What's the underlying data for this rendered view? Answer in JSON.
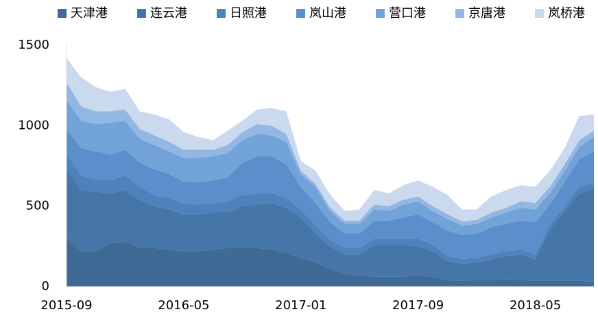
{
  "chart_data": {
    "type": "stacked_area",
    "categories": [
      "2015-09",
      null,
      null,
      null,
      null,
      null,
      null,
      null,
      "2016-05",
      null,
      null,
      null,
      null,
      null,
      null,
      null,
      "2017-01",
      null,
      null,
      null,
      null,
      null,
      null,
      null,
      "2017-09",
      null,
      null,
      null,
      null,
      null,
      null,
      null,
      "2018-05",
      null,
      null,
      null,
      null
    ],
    "series": [
      {
        "name": "天津港",
        "color": "#3f6a95",
        "values": [
          300,
          220,
          220,
          270,
          280,
          240,
          240,
          230,
          220,
          220,
          230,
          240,
          240,
          240,
          230,
          210,
          180,
          150,
          110,
          80,
          70,
          60,
          60,
          60,
          70,
          60,
          40,
          35,
          40,
          40,
          45,
          40,
          35,
          35,
          35,
          35,
          30
        ]
      },
      {
        "name": "连云港",
        "color": "#4675a8",
        "values": [
          430,
          380,
          370,
          310,
          320,
          300,
          260,
          250,
          230,
          230,
          230,
          220,
          260,
          270,
          290,
          280,
          250,
          180,
          140,
          120,
          130,
          200,
          200,
          200,
          180,
          160,
          120,
          105,
          110,
          130,
          145,
          160,
          135,
          325,
          435,
          545,
          580
        ]
      },
      {
        "name": "日照港",
        "color": "#4e82ba",
        "values": [
          100,
          90,
          80,
          80,
          90,
          80,
          70,
          70,
          70,
          60,
          60,
          70,
          70,
          70,
          60,
          60,
          50,
          50,
          40,
          40,
          40,
          40,
          40,
          40,
          50,
          40,
          30,
          30,
          30,
          30,
          30,
          30,
          30,
          30,
          30,
          40,
          40
        ]
      },
      {
        "name": "岚山港",
        "color": "#5a8fcb",
        "values": [
          150,
          170,
          170,
          160,
          160,
          150,
          160,
          150,
          130,
          140,
          140,
          150,
          200,
          230,
          230,
          210,
          140,
          140,
          110,
          90,
          90,
          110,
          110,
          130,
          150,
          140,
          160,
          150,
          150,
          170,
          170,
          180,
          200,
          120,
          150,
          170,
          190
        ]
      },
      {
        "name": "营口港",
        "color": "#72a3d8",
        "values": [
          180,
          170,
          170,
          200,
          180,
          150,
          150,
          140,
          150,
          150,
          150,
          150,
          140,
          140,
          130,
          140,
          80,
          100,
          70,
          60,
          60,
          70,
          60,
          80,
          80,
          70,
          70,
          60,
          60,
          60,
          70,
          80,
          80,
          70,
          70,
          80,
          90
        ]
      },
      {
        "name": "京唐港",
        "color": "#93b7e3",
        "values": [
          110,
          90,
          80,
          70,
          70,
          60,
          60,
          60,
          50,
          50,
          40,
          50,
          50,
          60,
          60,
          50,
          20,
          20,
          20,
          20,
          20,
          30,
          30,
          30,
          30,
          30,
          30,
          25,
          25,
          30,
          30,
          40,
          40,
          40,
          40,
          40,
          40
        ]
      },
      {
        "name": "岚桥港",
        "color": "#cbd9ef",
        "values": [
          150,
          180,
          150,
          120,
          130,
          110,
          130,
          140,
          110,
          80,
          60,
          90,
          70,
          90,
          110,
          140,
          60,
          80,
          80,
          60,
          70,
          90,
          80,
          90,
          100,
          120,
          120,
          75,
          65,
          100,
          110,
          100,
          100,
          100,
          100,
          150,
          100
        ]
      }
    ],
    "ylim": [
      0,
      1500
    ],
    "yticks": [
      0,
      500,
      1000,
      1500
    ]
  }
}
